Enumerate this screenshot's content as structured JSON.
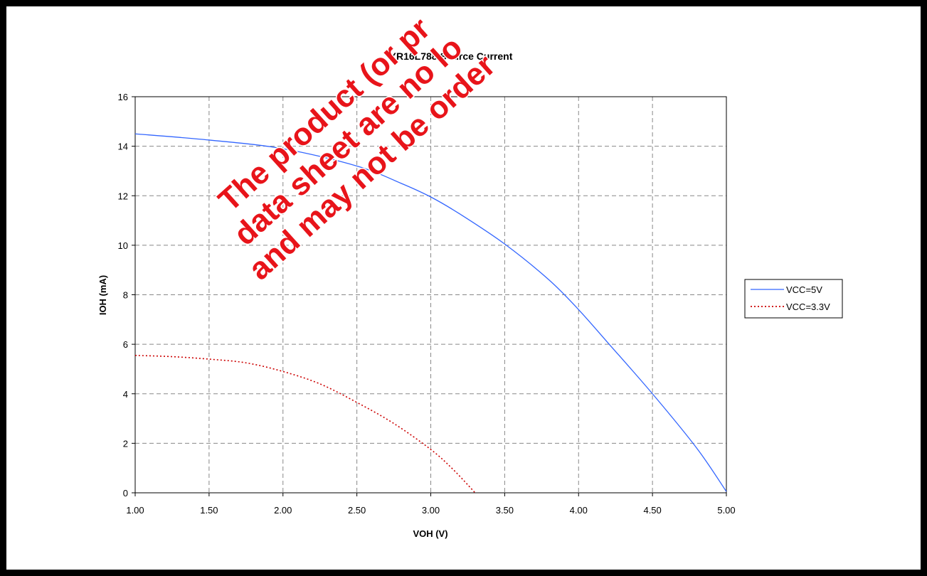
{
  "chart_data": {
    "type": "line",
    "title": "XR16L788 Source Current",
    "xlabel": "VOH (V)",
    "ylabel": "IOH (mA)",
    "xlim": [
      1.0,
      5.0
    ],
    "ylim": [
      0,
      16
    ],
    "xticks": [
      "1.00",
      "1.50",
      "2.00",
      "2.50",
      "3.00",
      "3.50",
      "4.00",
      "4.50",
      "5.00"
    ],
    "yticks": [
      "0",
      "2",
      "4",
      "6",
      "8",
      "10",
      "12",
      "14",
      "16"
    ],
    "grid": true,
    "legend_position": "right",
    "series": [
      {
        "name": "VCC=5V",
        "color": "#3366ff",
        "style": "solid",
        "x": [
          1.0,
          1.5,
          2.0,
          2.5,
          2.8,
          3.0,
          3.2,
          3.5,
          3.8,
          4.0,
          4.2,
          4.5,
          4.8,
          5.0
        ],
        "y": [
          14.5,
          14.25,
          13.9,
          13.2,
          12.5,
          11.95,
          11.25,
          10.05,
          8.6,
          7.4,
          6.05,
          4.0,
          1.8,
          0.05
        ]
      },
      {
        "name": "VCC=3.3V",
        "color": "#cc0000",
        "style": "dotted",
        "x": [
          1.0,
          1.25,
          1.5,
          1.75,
          2.0,
          2.25,
          2.5,
          2.75,
          3.0,
          3.15,
          3.3
        ],
        "y": [
          5.55,
          5.5,
          5.4,
          5.25,
          4.9,
          4.4,
          3.65,
          2.8,
          1.75,
          0.95,
          0.0
        ]
      }
    ]
  },
  "watermark": {
    "lines": [
      "The product (or pr",
      "data sheet are no lo",
      "and may not be order"
    ]
  }
}
